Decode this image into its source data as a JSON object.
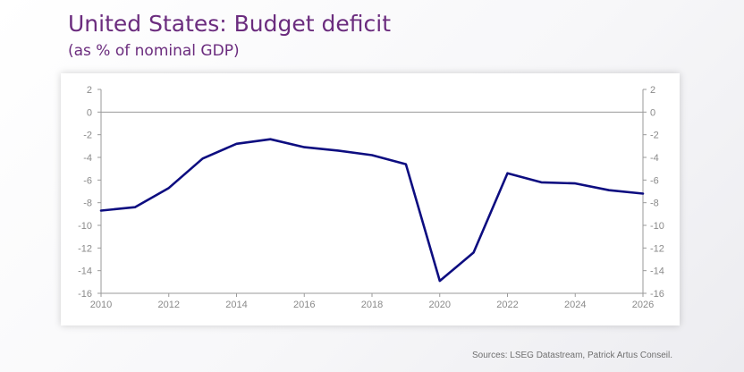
{
  "header": {
    "title": "United States: Budget deficit",
    "subtitle": "(as % of nominal GDP)"
  },
  "footer": {
    "source": "Sources: LSEG Datastream, Patrick Artus Conseil."
  },
  "colors": {
    "series": "#0d0d80",
    "title": "#6b2c7e",
    "axis": "#9a9a9a"
  },
  "chart_data": {
    "type": "line",
    "title": "United States: Budget deficit",
    "subtitle": "(as % of nominal GDP)",
    "xlabel": "",
    "ylabel": "",
    "xlim": [
      2010,
      2026
    ],
    "ylim": [
      -16,
      2
    ],
    "x_ticks": [
      2010,
      2012,
      2014,
      2016,
      2018,
      2020,
      2022,
      2024,
      2026
    ],
    "y_ticks": [
      2,
      0,
      -2,
      -4,
      -6,
      -8,
      -10,
      -12,
      -14,
      -16
    ],
    "y_axis_mirrored_right": true,
    "grid": false,
    "legend": "none",
    "series": [
      {
        "x": [
          2010,
          2011,
          2012,
          2013,
          2014,
          2015,
          2016,
          2017,
          2018,
          2019,
          2020,
          2021,
          2022,
          2023,
          2024,
          2025,
          2026
        ],
        "values": [
          -8.7,
          -8.4,
          -6.7,
          -4.1,
          -2.8,
          -2.4,
          -3.1,
          -3.4,
          -3.8,
          -4.6,
          -14.9,
          -12.4,
          -5.4,
          -6.2,
          -6.3,
          -6.9,
          -7.2
        ]
      }
    ]
  }
}
